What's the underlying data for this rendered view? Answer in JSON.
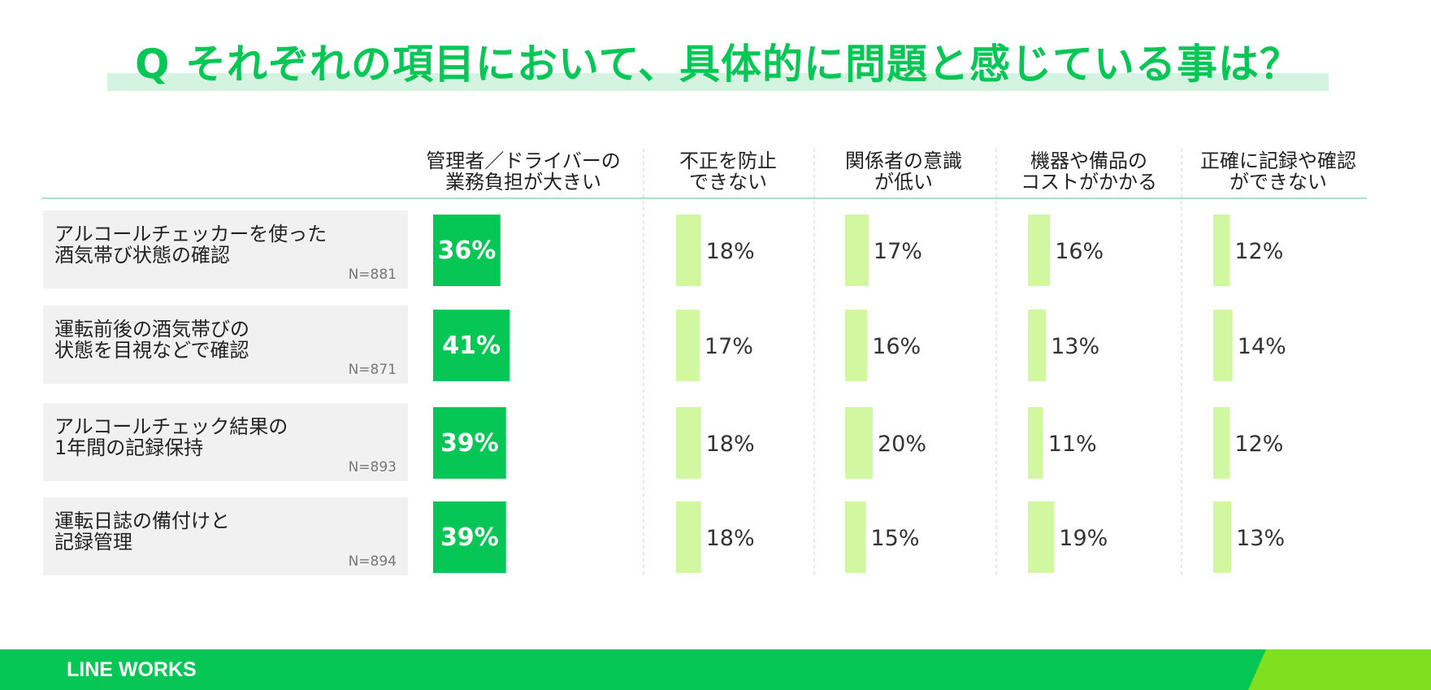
{
  "chart_data": {
    "type": "bar",
    "title": "Q それぞれの項目において、具体的に問題と感じている事は？",
    "columns": [
      "管理者／ドライバーの\n業務負担が大きい",
      "不正を防止\nできない",
      "関係者の意識\nが低い",
      "機器や備品の\nコストがかかる",
      "正確に記録や確認\nができない"
    ],
    "rows": [
      {
        "label": "アルコールチェッカーを使った\n酒気帯び状態の確認",
        "n": "N=881"
      },
      {
        "label": "運転前後の酒気帯びの\n状態を目視などで確認",
        "n": "N=871"
      },
      {
        "label": "アルコールチェック結果の\n1年間の記録保持",
        "n": "N=893"
      },
      {
        "label": "運転日誌の備付けと\n記録管理",
        "n": "N=894"
      }
    ],
    "values": [
      [
        36,
        18,
        17,
        16,
        12
      ],
      [
        41,
        17,
        16,
        13,
        14
      ],
      [
        39,
        18,
        20,
        11,
        12
      ],
      [
        39,
        18,
        15,
        19,
        13
      ]
    ],
    "value_suffix": "%",
    "colors": {
      "highlight": "#06c755",
      "bar": "#d2f7a1",
      "row_label_bg": "#f1f1f1",
      "divider": "#8fdcae"
    }
  },
  "footer": {
    "logo": "LINE WORKS"
  }
}
